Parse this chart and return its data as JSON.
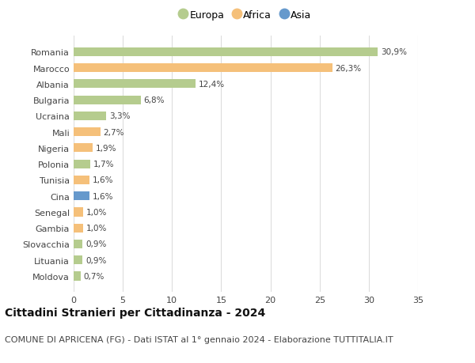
{
  "categories": [
    "Romania",
    "Marocco",
    "Albania",
    "Bulgaria",
    "Ucraina",
    "Mali",
    "Nigeria",
    "Polonia",
    "Tunisia",
    "Cina",
    "Senegal",
    "Gambia",
    "Slovacchia",
    "Lituania",
    "Moldova"
  ],
  "values": [
    30.9,
    26.3,
    12.4,
    6.8,
    3.3,
    2.7,
    1.9,
    1.7,
    1.6,
    1.6,
    1.0,
    1.0,
    0.9,
    0.9,
    0.7
  ],
  "labels": [
    "30,9%",
    "26,3%",
    "12,4%",
    "6,8%",
    "3,3%",
    "2,7%",
    "1,9%",
    "1,7%",
    "1,6%",
    "1,6%",
    "1,0%",
    "1,0%",
    "0,9%",
    "0,9%",
    "0,7%"
  ],
  "continents": [
    "Europa",
    "Africa",
    "Europa",
    "Europa",
    "Europa",
    "Africa",
    "Africa",
    "Europa",
    "Africa",
    "Asia",
    "Africa",
    "Africa",
    "Europa",
    "Europa",
    "Europa"
  ],
  "colors": {
    "Europa": "#b5cc8e",
    "Africa": "#f5c07a",
    "Asia": "#6699cc"
  },
  "legend_labels": [
    "Europa",
    "Africa",
    "Asia"
  ],
  "legend_colors": [
    "#b5cc8e",
    "#f5c07a",
    "#6699cc"
  ],
  "xlim": [
    0,
    35
  ],
  "xticks": [
    0,
    5,
    10,
    15,
    20,
    25,
    30,
    35
  ],
  "title": "Cittadini Stranieri per Cittadinanza - 2024",
  "subtitle": "COMUNE DI APRICENA (FG) - Dati ISTAT al 1° gennaio 2024 - Elaborazione TUTTITALIA.IT",
  "background_color": "#ffffff",
  "grid_color": "#dddddd",
  "title_fontsize": 10,
  "subtitle_fontsize": 8,
  "label_fontsize": 7.5,
  "tick_fontsize": 8,
  "legend_fontsize": 9
}
